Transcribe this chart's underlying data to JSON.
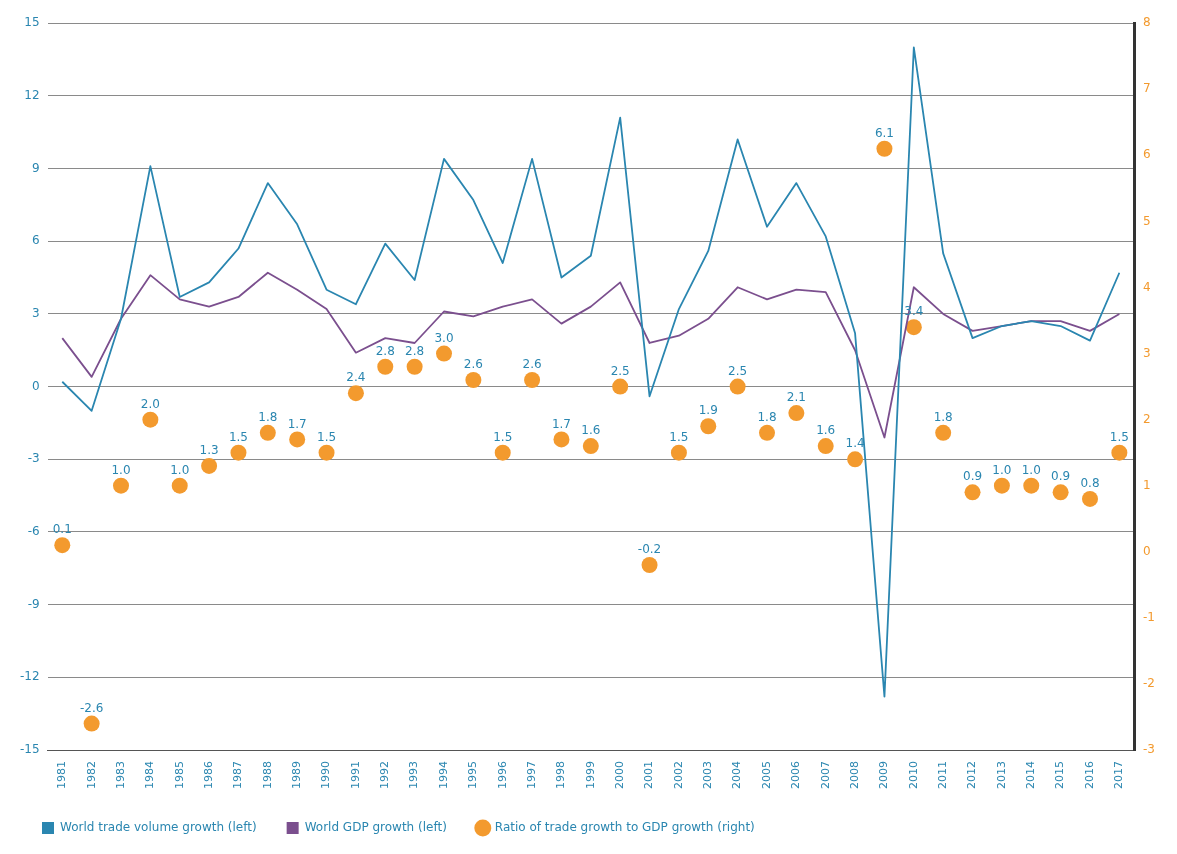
{
  "chart_data": {
    "type": "line",
    "categories": [
      "1981",
      "1982",
      "1983",
      "1984",
      "1985",
      "1986",
      "1987",
      "1988",
      "1989",
      "1990",
      "1991",
      "1992",
      "1993",
      "1994",
      "1995",
      "1996",
      "1997",
      "1998",
      "1999",
      "2000",
      "2001",
      "2002",
      "2003",
      "2004",
      "2005",
      "2006",
      "2007",
      "2008",
      "2009",
      "2010",
      "2011",
      "2012",
      "2013",
      "2014",
      "2015",
      "2016",
      "2017"
    ],
    "series": [
      {
        "name": "World trade volume growth (left)",
        "color": "#2a86b0",
        "marker": "none",
        "values": [
          0.2,
          -1.0,
          2.8,
          9.1,
          3.7,
          4.3,
          5.7,
          8.4,
          6.7,
          4.0,
          3.4,
          5.9,
          4.4,
          9.4,
          7.7,
          5.1,
          9.4,
          4.5,
          5.4,
          11.1,
          -0.4,
          3.2,
          5.6,
          10.2,
          6.6,
          8.4,
          6.2,
          2.2,
          -12.8,
          14.0,
          5.5,
          2.0,
          2.5,
          2.7,
          2.5,
          1.9,
          4.7
        ]
      },
      {
        "name": "World GDP growth (left)",
        "color": "#7b4f8e",
        "marker": "none",
        "values": [
          2.0,
          0.4,
          2.8,
          4.6,
          3.6,
          3.3,
          3.7,
          4.7,
          4.0,
          3.2,
          1.4,
          2.0,
          1.8,
          3.1,
          2.9,
          3.3,
          3.6,
          2.6,
          3.3,
          4.3,
          1.8,
          2.1,
          2.8,
          4.1,
          3.6,
          4.0,
          3.9,
          1.5,
          -2.1,
          4.1,
          3.0,
          2.3,
          2.5,
          2.7,
          2.7,
          2.3,
          3.0
        ]
      },
      {
        "name": "Ratio of trade growth to GDP growth (right)",
        "type": "scatter",
        "axis": "y2",
        "color": "#f39a2e",
        "marker": "circle",
        "values": [
          0.1,
          -2.6,
          1.0,
          2.0,
          1.0,
          1.3,
          1.5,
          1.8,
          1.7,
          1.5,
          2.4,
          2.8,
          2.8,
          3.0,
          2.6,
          1.5,
          2.6,
          1.7,
          1.6,
          2.5,
          -0.2,
          1.5,
          1.9,
          2.5,
          1.8,
          2.1,
          1.6,
          1.4,
          6.1,
          3.4,
          1.8,
          0.9,
          1.0,
          1.0,
          0.9,
          0.8,
          1.5
        ],
        "value_labels": [
          "0.1",
          "-2.6",
          "1.0",
          "2.0",
          "1.0",
          "1.3",
          "1.5",
          "1.8",
          "1.7",
          "1.5",
          "2.4",
          "2.8",
          "2.8",
          "3.0",
          "2.6",
          "1.5",
          "2.6",
          "1.7",
          "1.6",
          "2.5",
          "-0.2",
          "1.5",
          "1.9",
          "2.5",
          "1.8",
          "2.1",
          "1.6",
          "1.4",
          "6.1",
          "3.4",
          "1.8",
          "0.9",
          "1.0",
          "1.0",
          "0.9",
          "0.8",
          "1.5"
        ]
      }
    ],
    "ylim": [
      -15,
      15
    ],
    "yticks": [
      -15,
      -12,
      -9,
      -6,
      -3,
      0,
      3,
      6,
      9,
      12,
      15
    ],
    "y2lim": [
      -3,
      8
    ],
    "y2ticks": [
      -3,
      -2,
      -1,
      0,
      1,
      2,
      3,
      4,
      5,
      6,
      7,
      8
    ],
    "grid": "y",
    "legend": "bottom"
  }
}
